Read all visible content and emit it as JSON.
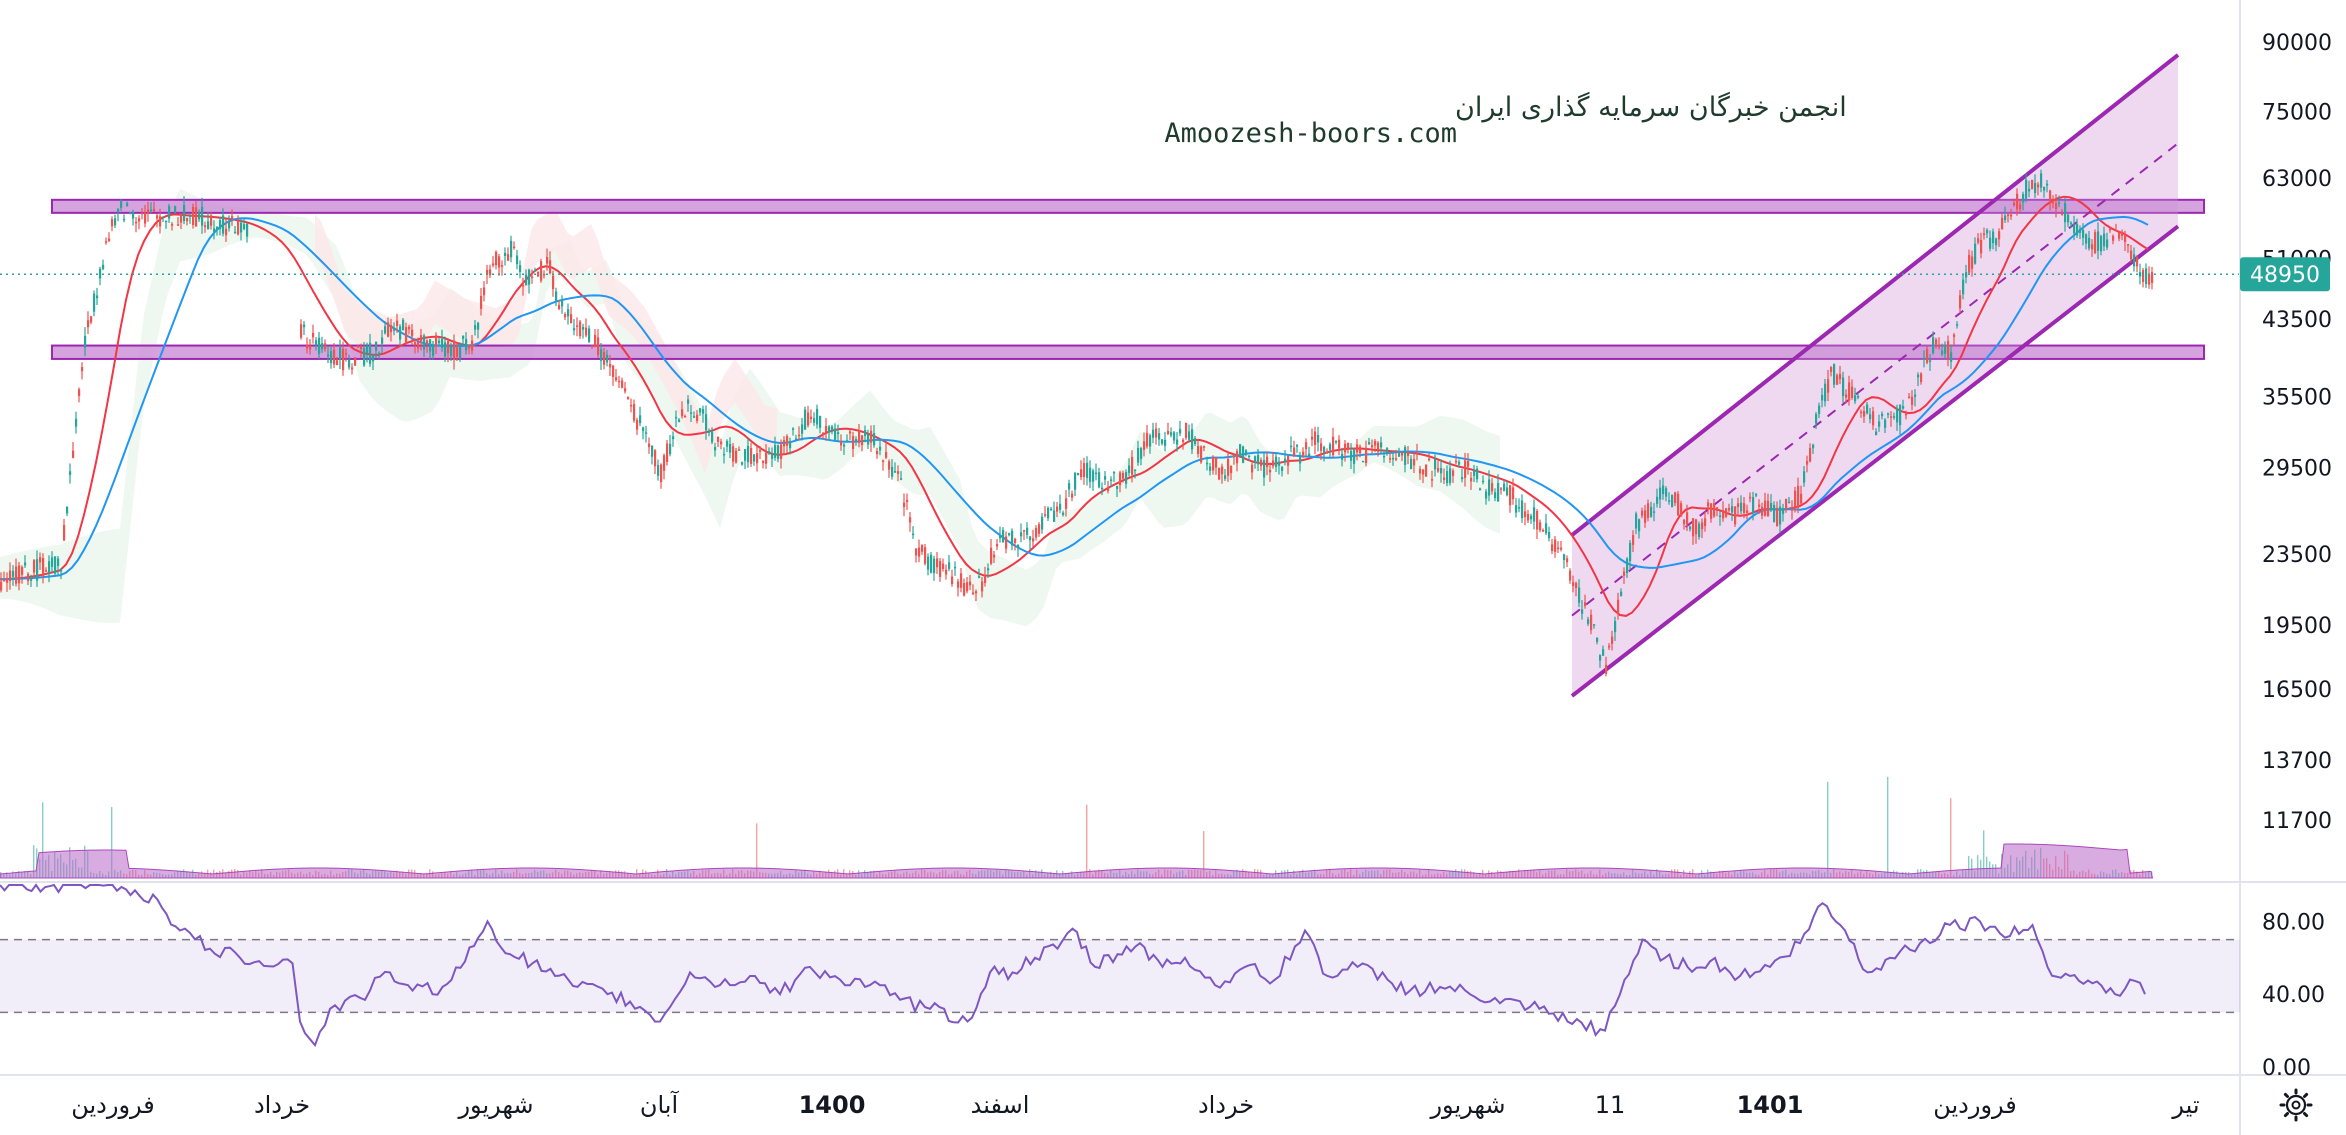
{
  "watermark": {
    "line1": "انجمن خبرگان سرمایه گذاری ایران",
    "line2": "Amoozesh-boors.com"
  },
  "price_tag": "48950",
  "settings_icon": "gear-icon",
  "colors": {
    "up": "#26a69a",
    "down": "#ef5350",
    "channel": "#9c27b0",
    "zone_fill": "#ce93d8",
    "ma_fast": "#f23645",
    "ma_slow": "#2196f3",
    "rsi": "#7e57c2",
    "price_tag": "#26a69a"
  },
  "chart_data": [
    {
      "type": "candlestick",
      "scale": "log",
      "y_ticks": [
        "90000",
        "75000",
        "63000",
        "51000",
        "43500",
        "35500",
        "29500",
        "23500",
        "19500",
        "16500",
        "13700",
        "11700"
      ],
      "x_ticks": [
        "فروردین",
        "خرداد",
        "شهریور",
        "آبان",
        "1400",
        "اسفند",
        "خرداد",
        "شهریور",
        "11",
        "1401",
        "فروردین",
        "تیر"
      ],
      "x_ticks_bold": [
        "1400",
        "1401"
      ],
      "last_price": 48950,
      "close_path": [
        [
          0,
          22000
        ],
        [
          40,
          23000
        ],
        [
          55,
          40000
        ],
        [
          70,
          53000
        ],
        [
          80,
          58000
        ],
        [
          100,
          57000
        ],
        [
          130,
          57000
        ],
        [
          165,
          55000
        ],
        [
          185,
          50000
        ],
        [
          200,
          42000
        ],
        [
          210,
          40500
        ],
        [
          230,
          39000
        ],
        [
          250,
          40000
        ],
        [
          260,
          43000
        ],
        [
          280,
          41000
        ],
        [
          300,
          40000
        ],
        [
          315,
          41000
        ],
        [
          325,
          50000
        ],
        [
          340,
          52000
        ],
        [
          350,
          48000
        ],
        [
          365,
          50000
        ],
        [
          375,
          44000
        ],
        [
          390,
          42000
        ],
        [
          400,
          40000
        ],
        [
          415,
          36000
        ],
        [
          430,
          32000
        ],
        [
          440,
          29000
        ],
        [
          450,
          33000
        ],
        [
          460,
          35000
        ],
        [
          470,
          33000
        ],
        [
          480,
          31000
        ],
        [
          495,
          30500
        ],
        [
          510,
          30000
        ],
        [
          520,
          31000
        ],
        [
          530,
          32500
        ],
        [
          540,
          34000
        ],
        [
          555,
          32000
        ],
        [
          570,
          31500
        ],
        [
          580,
          32000
        ],
        [
          590,
          30000
        ],
        [
          600,
          28000
        ],
        [
          610,
          24000
        ],
        [
          620,
          23000
        ],
        [
          630,
          22500
        ],
        [
          645,
          21500
        ],
        [
          655,
          22000
        ],
        [
          665,
          24500
        ],
        [
          680,
          24500
        ],
        [
          695,
          25500
        ],
        [
          710,
          27000
        ],
        [
          720,
          29500
        ],
        [
          735,
          28000
        ],
        [
          750,
          29000
        ],
        [
          765,
          32000
        ],
        [
          780,
          31500
        ],
        [
          790,
          32500
        ],
        [
          800,
          30500
        ],
        [
          815,
          29000
        ],
        [
          825,
          30500
        ],
        [
          840,
          29500
        ],
        [
          850,
          30000
        ],
        [
          865,
          30500
        ],
        [
          875,
          31500
        ],
        [
          890,
          31000
        ],
        [
          905,
          30500
        ],
        [
          920,
          31000
        ],
        [
          935,
          30500
        ],
        [
          950,
          29500
        ],
        [
          965,
          29000
        ],
        [
          975,
          29500
        ],
        [
          990,
          28000
        ],
        [
          1005,
          27500
        ],
        [
          1015,
          26500
        ],
        [
          1025,
          25500
        ],
        [
          1035,
          24000
        ],
        [
          1045,
          22500
        ],
        [
          1055,
          20500
        ],
        [
          1065,
          18500
        ],
        [
          1070,
          17500
        ],
        [
          1080,
          21000
        ],
        [
          1090,
          25500
        ],
        [
          1100,
          26500
        ],
        [
          1110,
          28000
        ],
        [
          1120,
          26500
        ],
        [
          1130,
          25000
        ],
        [
          1140,
          26500
        ],
        [
          1155,
          26000
        ],
        [
          1170,
          27000
        ],
        [
          1185,
          26000
        ],
        [
          1200,
          27500
        ],
        [
          1210,
          33000
        ],
        [
          1220,
          38000
        ],
        [
          1230,
          36000
        ],
        [
          1240,
          35000
        ],
        [
          1250,
          33000
        ],
        [
          1260,
          33500
        ],
        [
          1270,
          34000
        ],
        [
          1280,
          38000
        ],
        [
          1290,
          41000
        ],
        [
          1300,
          40000
        ],
        [
          1310,
          50000
        ],
        [
          1320,
          53000
        ],
        [
          1330,
          54000
        ],
        [
          1340,
          58000
        ],
        [
          1350,
          61000
        ],
        [
          1360,
          63000
        ],
        [
          1365,
          60000
        ],
        [
          1375,
          58000
        ],
        [
          1385,
          55000
        ],
        [
          1395,
          53000
        ],
        [
          1405,
          54000
        ],
        [
          1415,
          55000
        ],
        [
          1420,
          51000
        ],
        [
          1428,
          48500
        ],
        [
          1435,
          48950
        ]
      ],
      "horizontal_zones": [
        {
          "price_low": 57500,
          "price_high": 59500
        },
        {
          "price_low": 39200,
          "price_high": 40600
        }
      ],
      "ascending_channel": {
        "upper": [
          [
            1048,
            24700
          ],
          [
            1452,
            87000
          ]
        ],
        "lower": [
          [
            1048,
            16200
          ],
          [
            1452,
            55500
          ]
        ],
        "mid": [
          [
            1048,
            20000
          ],
          [
            1452,
            69000
          ]
        ]
      },
      "moving_averages": [
        {
          "name": "fast",
          "color": "#f23645"
        },
        {
          "name": "slow",
          "color": "#2196f3"
        }
      ]
    },
    {
      "type": "line",
      "indicator": "RSI",
      "y_ticks": [
        "80.00",
        "40.00",
        "0.00"
      ],
      "band": [
        30,
        70
      ],
      "values": [
        [
          0,
          100
        ],
        [
          75,
          100
        ],
        [
          105,
          92
        ],
        [
          120,
          75
        ],
        [
          140,
          65
        ],
        [
          160,
          60
        ],
        [
          195,
          57
        ],
        [
          200,
          25
        ],
        [
          210,
          12
        ],
        [
          220,
          32
        ],
        [
          240,
          38
        ],
        [
          260,
          52
        ],
        [
          275,
          42
        ],
        [
          295,
          44
        ],
        [
          310,
          58
        ],
        [
          325,
          80
        ],
        [
          340,
          62
        ],
        [
          355,
          57
        ],
        [
          370,
          50
        ],
        [
          385,
          44
        ],
        [
          405,
          40
        ],
        [
          420,
          36
        ],
        [
          440,
          25
        ],
        [
          460,
          52
        ],
        [
          480,
          45
        ],
        [
          500,
          50
        ],
        [
          520,
          40
        ],
        [
          540,
          55
        ],
        [
          560,
          48
        ],
        [
          580,
          45
        ],
        [
          600,
          37
        ],
        [
          620,
          32
        ],
        [
          645,
          25
        ],
        [
          660,
          52
        ],
        [
          675,
          52
        ],
        [
          690,
          60
        ],
        [
          705,
          65
        ],
        [
          715,
          76
        ],
        [
          730,
          55
        ],
        [
          745,
          62
        ],
        [
          760,
          68
        ],
        [
          775,
          55
        ],
        [
          790,
          60
        ],
        [
          810,
          45
        ],
        [
          830,
          55
        ],
        [
          850,
          48
        ],
        [
          870,
          75
        ],
        [
          885,
          50
        ],
        [
          905,
          55
        ],
        [
          925,
          48
        ],
        [
          940,
          42
        ],
        [
          960,
          44
        ],
        [
          980,
          40
        ],
        [
          1000,
          35
        ],
        [
          1020,
          33
        ],
        [
          1045,
          25
        ],
        [
          1070,
          20
        ],
        [
          1080,
          40
        ],
        [
          1095,
          70
        ],
        [
          1110,
          60
        ],
        [
          1125,
          55
        ],
        [
          1140,
          58
        ],
        [
          1160,
          50
        ],
        [
          1180,
          55
        ],
        [
          1200,
          68
        ],
        [
          1215,
          90
        ],
        [
          1230,
          75
        ],
        [
          1245,
          52
        ],
        [
          1260,
          60
        ],
        [
          1280,
          68
        ],
        [
          1300,
          78
        ],
        [
          1320,
          80
        ],
        [
          1340,
          72
        ],
        [
          1355,
          78
        ],
        [
          1365,
          55
        ],
        [
          1380,
          50
        ],
        [
          1395,
          46
        ],
        [
          1410,
          40
        ],
        [
          1420,
          48
        ],
        [
          1430,
          40
        ]
      ]
    }
  ]
}
